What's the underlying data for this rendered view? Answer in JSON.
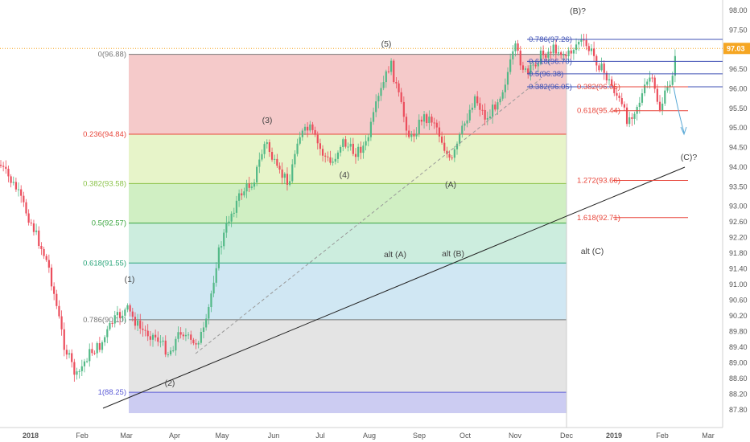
{
  "chart_data": {
    "type": "candlestick",
    "x_axis_labels": [
      "2018",
      "Feb",
      "Mar",
      "Apr",
      "May",
      "Jun",
      "Jul",
      "Aug",
      "Sep",
      "Oct",
      "Nov",
      "Dec",
      "2019",
      "Feb",
      "Mar"
    ],
    "y_axis_labels": [
      "98.00",
      "97.50",
      "97.03",
      "96.50",
      "96.00",
      "95.50",
      "95.00",
      "94.50",
      "94.00",
      "93.50",
      "93.00",
      "92.60",
      "92.20",
      "91.80",
      "91.40",
      "91.00",
      "90.60",
      "90.20",
      "89.80",
      "89.40",
      "89.00",
      "88.60",
      "88.20",
      "87.80"
    ],
    "y_range": [
      87.7,
      98.2
    ],
    "last_price": "97.03",
    "colors": {
      "up": "#53b987",
      "down": "#eb4d5c",
      "trendline": "#222222",
      "dashed_trendline": "#999999",
      "price_line": "#f5a623"
    },
    "fib_retracement": {
      "levels": [
        {
          "label": "0(96.88)",
          "value": 96.88,
          "color": "#787878",
          "fill": "#f4c7c7"
        },
        {
          "label": "0.236(94.84)",
          "value": 94.84,
          "color": "#e8473c",
          "fill": "#e6f3c6"
        },
        {
          "label": "0.382(93.58)",
          "value": 93.58,
          "color": "#8bc34a",
          "fill": "#cdeec0"
        },
        {
          "label": "0.5(92.57)",
          "value": 92.57,
          "color": "#3aa53f",
          "fill": "#c9ecdc"
        },
        {
          "label": "0.618(91.55)",
          "value": 91.55,
          "color": "#2aa57a",
          "fill": "#cde6f2"
        },
        {
          "label": "0.786(90.10)",
          "value": 90.1,
          "color": "#787878",
          "fill": "#e3e3e3"
        },
        {
          "label": "1(88.25)",
          "value": 88.25,
          "color": "#5b5bd6",
          "fill": "#c9c9f1"
        }
      ]
    },
    "fib_retracement_small": [
      {
        "label": "0.786(97.26)",
        "value": 97.26,
        "color": "#3f51b5"
      },
      {
        "label": "0.618(96.70)",
        "value": 96.7,
        "color": "#3f51b5"
      },
      {
        "label": "0.5(96.38)",
        "value": 96.38,
        "color": "#3f51b5"
      },
      {
        "label": "0.382(96.05)",
        "value": 96.05,
        "color": "#3f51b5"
      }
    ],
    "fib_extension": [
      {
        "label": "0.382(96.05)",
        "value": 96.05,
        "color": "#e8473c"
      },
      {
        "label": "0.618(95.44)",
        "value": 95.44,
        "color": "#e8473c"
      },
      {
        "label": "1.272(93.66)",
        "value": 93.66,
        "color": "#e8473c"
      },
      {
        "label": "1.618(92.71)",
        "value": 92.71,
        "color": "#e8473c"
      }
    ],
    "annotations": [
      "(1)",
      "(2)",
      "(3)",
      "(4)",
      "(5)",
      "(A)",
      "(B)?",
      "(C)?",
      "alt (A)",
      "alt (B)",
      "alt (C)"
    ]
  }
}
